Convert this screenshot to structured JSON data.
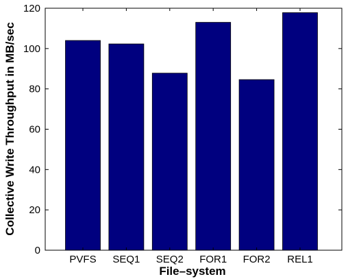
{
  "chart_data": {
    "type": "bar",
    "title": "",
    "xlabel": "File–system",
    "ylabel": "Collective Write Throughput in MB/sec",
    "categories": [
      "PVFS",
      "SEQ1",
      "SEQ2",
      "FOR1",
      "FOR2",
      "REL1"
    ],
    "values": [
      104,
      102.3,
      87.8,
      113,
      84.6,
      117.8
    ],
    "ylim": [
      0,
      120
    ],
    "yticks": [
      0,
      20,
      40,
      60,
      80,
      100,
      120
    ],
    "grid": false,
    "legend": "none",
    "bar_color": "#00007f"
  }
}
